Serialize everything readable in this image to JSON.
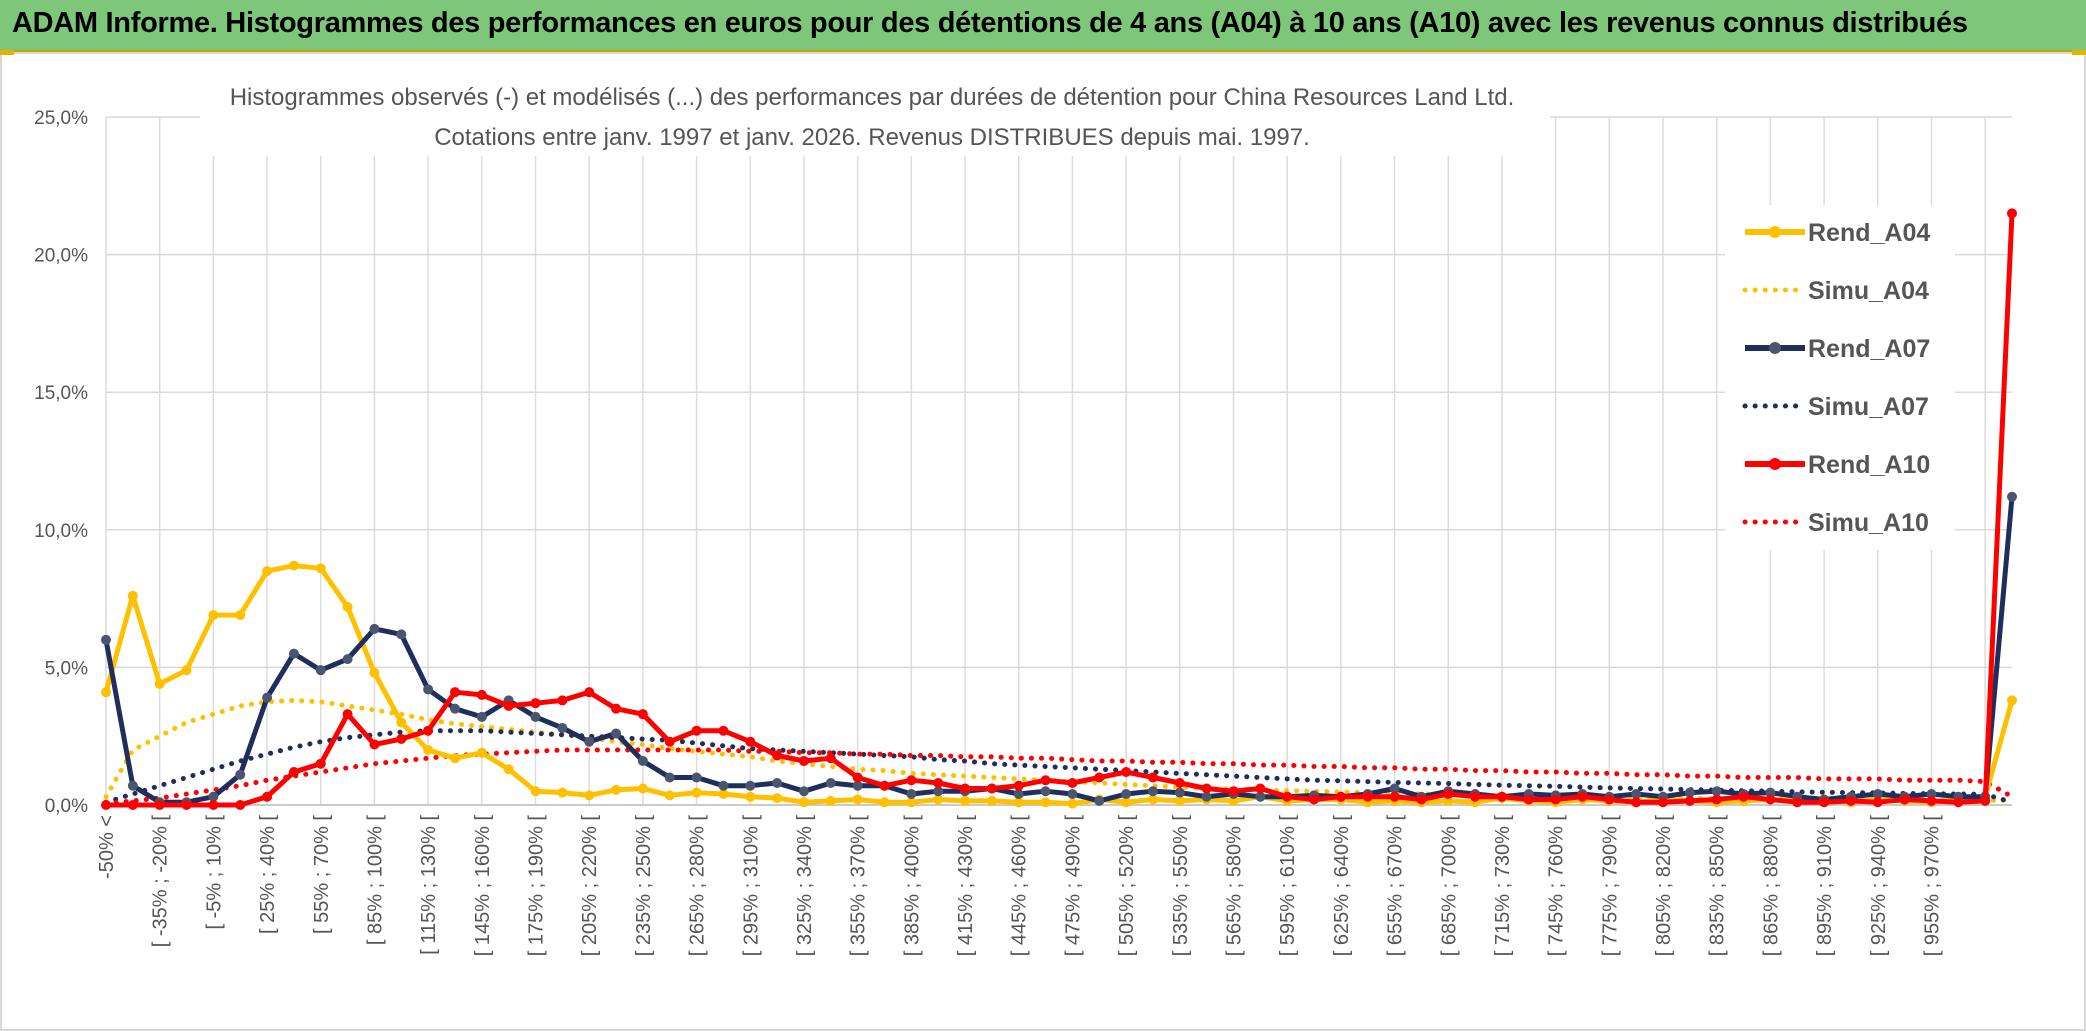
{
  "header": {
    "title": "ADAM Informe. Histogrammes des performances en euros pour des détentions de 4 ans (A04) à 10 ans (A10) avec les revenus connus distribués"
  },
  "chart_data": {
    "type": "line",
    "title": "Histogrammes observés (-) et modélisés (...) des performances par durées de détention pour China Resources Land Ltd.",
    "subtitle": "Cotations entre janv. 1997 et janv. 2026. Revenus DISTRIBUES depuis mai. 1997.",
    "xlabel": "",
    "ylabel": "",
    "ylim": [
      0,
      25
    ],
    "yticks": [
      "0,0%",
      "5,0%",
      "10,0%",
      "15,0%",
      "20,0%",
      "25,0%"
    ],
    "grid": true,
    "legend_position": "right",
    "x_tick_labels": [
      "-50% <",
      "[ -35% ; -20% [",
      "[ -5% ; 10% [",
      "[ 25% ; 40% [",
      "[ 55% ; 70% [",
      "[ 85% ; 100% [",
      "[ 115% ; 130% [",
      "[ 145% ; 160% [",
      "[ 175% ; 190% [",
      "[ 205% ; 220% [",
      "[ 235% ; 250% [",
      "[ 265% ; 280% [",
      "[ 295% ; 310% [",
      "[ 325% ; 340% [",
      "[ 355% ; 370% [",
      "[ 385% ; 400% [",
      "[ 415% ; 430% [",
      "[ 445% ; 460% [",
      "[ 475% ; 490% [",
      "[ 505% ; 520% [",
      "[ 535% ; 550% [",
      "[ 565% ; 580% [",
      "[ 595% ; 610% [",
      "[ 625% ; 640% [",
      "[ 655% ; 670% [",
      "[ 685% ; 700% [",
      "[ 715% ; 730% [",
      "[ 745% ; 760% [",
      "[ 775% ; 790% [",
      "[ 805% ; 820% [",
      "[ 835% ; 850% [",
      "[ 865% ; 880% [",
      "[ 895% ; 910% [",
      "[ 925% ; 940% [",
      "[ 955% ; 970% ["
    ],
    "series": [
      {
        "name": "Rend_A04",
        "style": "solid",
        "color": "#ffc000",
        "values": [
          4.1,
          7.6,
          4.4,
          4.9,
          6.9,
          6.9,
          8.5,
          8.7,
          8.6,
          7.2,
          4.8,
          3.0,
          2.0,
          1.7,
          1.9,
          1.3,
          0.5,
          0.45,
          0.35,
          0.55,
          0.6,
          0.35,
          0.45,
          0.4,
          0.3,
          0.25,
          0.1,
          0.15,
          0.2,
          0.1,
          0.1,
          0.2,
          0.15,
          0.15,
          0.1,
          0.1,
          0.05,
          0.2,
          0.1,
          0.2,
          0.15,
          0.2,
          0.15,
          0.3,
          0.15,
          0.2,
          0.2,
          0.1,
          0.15,
          0.1,
          0.15,
          0.1,
          0.25,
          0.15,
          0.1,
          0.2,
          0.15,
          0.1,
          0.2,
          0.15,
          0.1,
          0.15,
          0.2,
          0.15,
          0.2,
          0.1,
          0.2,
          0.15,
          0.1,
          0.2,
          0.3,
          3.8
        ]
      },
      {
        "name": "Simu_A04",
        "style": "dotted",
        "color": "#ffc000",
        "values": [
          0.3,
          2.0,
          2.5,
          3.0,
          3.3,
          3.6,
          3.75,
          3.8,
          3.75,
          3.6,
          3.45,
          3.3,
          3.1,
          2.95,
          2.85,
          2.75,
          2.65,
          2.55,
          2.45,
          2.3,
          2.2,
          2.05,
          1.95,
          1.85,
          1.75,
          1.6,
          1.5,
          1.4,
          1.3,
          1.25,
          1.15,
          1.1,
          1.05,
          1.0,
          0.95,
          0.9,
          0.85,
          0.8,
          0.75,
          0.7,
          0.65,
          0.6,
          0.58,
          0.55,
          0.52,
          0.5,
          0.48,
          0.45,
          0.42,
          0.4,
          0.38,
          0.36,
          0.34,
          0.32,
          0.3,
          0.29,
          0.28,
          0.27,
          0.26,
          0.25,
          0.24,
          0.23,
          0.22,
          0.21,
          0.2,
          0.2,
          0.19,
          0.18,
          0.18,
          0.17,
          0.17,
          0.16
        ]
      },
      {
        "name": "Rend_A07",
        "style": "solid",
        "color": "#1f2e5c",
        "values": [
          6.0,
          0.7,
          0.1,
          0.1,
          0.3,
          1.1,
          3.9,
          5.5,
          4.9,
          5.3,
          6.4,
          6.2,
          4.2,
          3.5,
          3.2,
          3.8,
          3.2,
          2.8,
          2.3,
          2.6,
          1.6,
          1.0,
          1.0,
          0.7,
          0.7,
          0.8,
          0.5,
          0.8,
          0.7,
          0.7,
          0.4,
          0.5,
          0.5,
          0.6,
          0.4,
          0.5,
          0.4,
          0.15,
          0.4,
          0.5,
          0.45,
          0.3,
          0.4,
          0.3,
          0.3,
          0.35,
          0.3,
          0.4,
          0.6,
          0.3,
          0.5,
          0.4,
          0.3,
          0.4,
          0.35,
          0.4,
          0.3,
          0.4,
          0.3,
          0.45,
          0.5,
          0.4,
          0.45,
          0.3,
          0.2,
          0.3,
          0.4,
          0.3,
          0.4,
          0.3,
          0.3,
          11.2
        ]
      },
      {
        "name": "Simu_A07",
        "style": "dotted",
        "color": "#1f2e5c",
        "values": [
          0.1,
          0.4,
          0.7,
          1.0,
          1.3,
          1.6,
          1.85,
          2.1,
          2.3,
          2.45,
          2.55,
          2.65,
          2.7,
          2.7,
          2.7,
          2.65,
          2.6,
          2.55,
          2.5,
          2.45,
          2.4,
          2.35,
          2.25,
          2.15,
          2.05,
          2.0,
          1.95,
          1.9,
          1.85,
          1.8,
          1.75,
          1.65,
          1.6,
          1.5,
          1.45,
          1.4,
          1.35,
          1.3,
          1.25,
          1.2,
          1.15,
          1.1,
          1.05,
          1.0,
          0.95,
          0.9,
          0.88,
          0.85,
          0.82,
          0.8,
          0.78,
          0.75,
          0.72,
          0.7,
          0.68,
          0.65,
          0.62,
          0.6,
          0.58,
          0.56,
          0.54,
          0.52,
          0.5,
          0.48,
          0.46,
          0.45,
          0.44,
          0.42,
          0.41,
          0.4,
          0.39,
          0.1
        ]
      },
      {
        "name": "Rend_A10",
        "style": "solid",
        "color": "#ff0000",
        "values": [
          0.0,
          0.0,
          0.0,
          0.0,
          0.0,
          0.0,
          0.3,
          1.2,
          1.5,
          3.3,
          2.2,
          2.4,
          2.7,
          4.1,
          4.0,
          3.6,
          3.7,
          3.8,
          4.1,
          3.5,
          3.3,
          2.3,
          2.7,
          2.7,
          2.3,
          1.8,
          1.6,
          1.7,
          1.0,
          0.7,
          0.9,
          0.8,
          0.6,
          0.6,
          0.7,
          0.9,
          0.8,
          1.0,
          1.2,
          1.0,
          0.8,
          0.6,
          0.5,
          0.6,
          0.3,
          0.2,
          0.3,
          0.3,
          0.3,
          0.2,
          0.4,
          0.3,
          0.3,
          0.2,
          0.2,
          0.3,
          0.2,
          0.1,
          0.1,
          0.15,
          0.2,
          0.3,
          0.2,
          0.1,
          0.1,
          0.15,
          0.1,
          0.2,
          0.15,
          0.1,
          0.15,
          21.5
        ]
      },
      {
        "name": "Simu_A10",
        "style": "dotted",
        "color": "#ff0000",
        "values": [
          0.05,
          0.15,
          0.25,
          0.4,
          0.55,
          0.7,
          0.9,
          1.05,
          1.2,
          1.35,
          1.5,
          1.6,
          1.7,
          1.8,
          1.85,
          1.9,
          1.95,
          2.0,
          2.0,
          2.0,
          2.0,
          2.0,
          2.0,
          2.0,
          1.95,
          1.95,
          1.9,
          1.9,
          1.85,
          1.85,
          1.8,
          1.8,
          1.75,
          1.75,
          1.7,
          1.7,
          1.65,
          1.6,
          1.6,
          1.55,
          1.55,
          1.5,
          1.5,
          1.45,
          1.45,
          1.4,
          1.4,
          1.35,
          1.35,
          1.3,
          1.3,
          1.25,
          1.25,
          1.2,
          1.2,
          1.15,
          1.15,
          1.1,
          1.1,
          1.05,
          1.05,
          1.0,
          1.0,
          1.0,
          0.95,
          0.95,
          0.95,
          0.9,
          0.9,
          0.9,
          0.85,
          0.3
        ]
      }
    ]
  }
}
